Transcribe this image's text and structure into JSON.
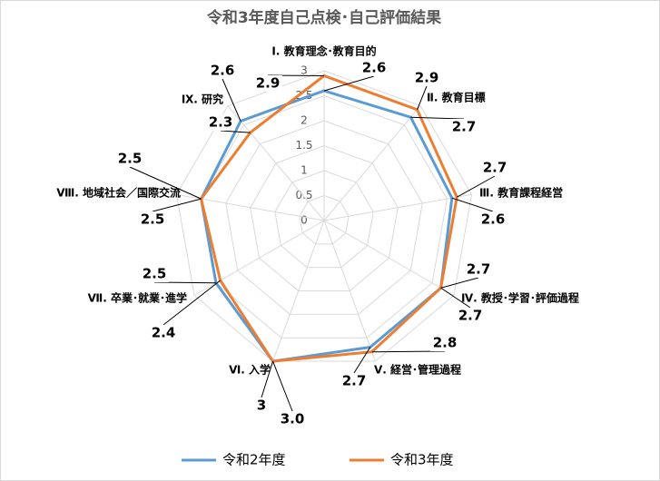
{
  "chart_data": {
    "type": "radar",
    "title": "令和3年度自己点検･自己評価結果",
    "categories": [
      "Ⅰ. 教育理念･教育目的",
      "Ⅱ. 教育目標",
      "Ⅲ. 教育課程経営",
      "Ⅳ. 教授･学習･評価過程",
      "Ⅴ. 経営･管理過程",
      "Ⅵ. 入学",
      "Ⅶ. 卒業･就業･進学",
      "Ⅷ. 地域社会／国際交流",
      "Ⅸ. 研究"
    ],
    "series": [
      {
        "name": "令和2年度",
        "color": "#5b9bd5",
        "values": [
          2.6,
          2.7,
          2.6,
          2.7,
          2.7,
          3,
          2.5,
          2.5,
          2.6
        ]
      },
      {
        "name": "令和3年度",
        "color": "#ed7d31",
        "values": [
          2.9,
          2.9,
          2.7,
          2.7,
          2.8,
          3,
          2.4,
          2.5,
          2.3
        ],
        "value_labels": [
          "2.9",
          "2.9",
          "2.7",
          "2.7",
          "2.8",
          "3.0",
          "2.4",
          "2.5",
          "2.3"
        ]
      }
    ],
    "rlim": [
      0,
      3
    ],
    "rticks": [
      0,
      0.5,
      1,
      1.5,
      2,
      2.5,
      3
    ],
    "grid": true,
    "legend": "bottom"
  }
}
